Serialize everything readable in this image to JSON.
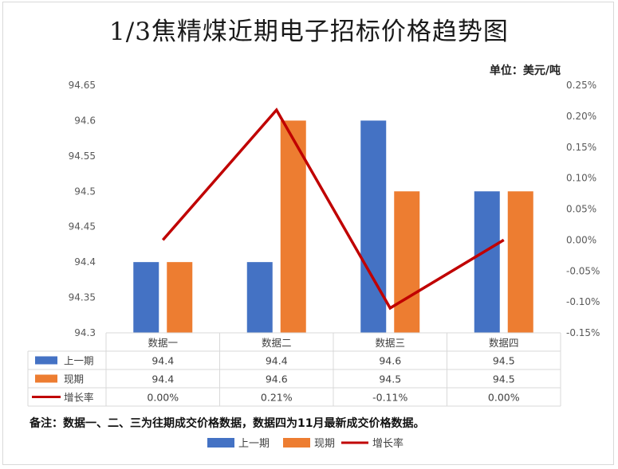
{
  "title": "1/3焦精煤近期电子招标价格趋势图",
  "unit_label": "单位：美元/吨",
  "note": "备注：数据一、二、三为往期成交价格数据，数据四为11月最新成交价格数据。",
  "colors": {
    "prev": "#4472c4",
    "curr": "#ed7d31",
    "rate": "#c00000",
    "grid": "#d9d9d9"
  },
  "chart_data": {
    "type": "bar",
    "categories": [
      "数据一",
      "数据二",
      "数据三",
      "数据四"
    ],
    "series": [
      {
        "name": "上一期",
        "type": "bar",
        "axis": "left",
        "values": [
          94.4,
          94.4,
          94.6,
          94.5
        ],
        "labels": [
          "94.4",
          "94.4",
          "94.6",
          "94.5"
        ]
      },
      {
        "name": "现期",
        "type": "bar",
        "axis": "left",
        "values": [
          94.4,
          94.6,
          94.5,
          94.5
        ],
        "labels": [
          "94.4",
          "94.6",
          "94.5",
          "94.5"
        ]
      },
      {
        "name": "增长率",
        "type": "line",
        "axis": "right",
        "values": [
          0.0,
          0.21,
          -0.11,
          0.0
        ],
        "labels": [
          "0.00%",
          "0.21%",
          "-0.11%",
          "0.00%"
        ]
      }
    ],
    "y_left": {
      "min": 94.3,
      "max": 94.65,
      "ticks": [
        "94.3",
        "94.35",
        "94.4",
        "94.45",
        "94.5",
        "94.55",
        "94.6",
        "94.65"
      ]
    },
    "y_right": {
      "min": -0.15,
      "max": 0.25,
      "ticks": [
        "-0.15%",
        "-0.10%",
        "-0.05%",
        "0.00%",
        "0.05%",
        "0.10%",
        "0.15%",
        "0.20%",
        "0.25%"
      ]
    },
    "legend": [
      "上一期",
      "现期",
      "增长率"
    ],
    "legend_position": "bottom",
    "data_table": true,
    "grid": false
  }
}
